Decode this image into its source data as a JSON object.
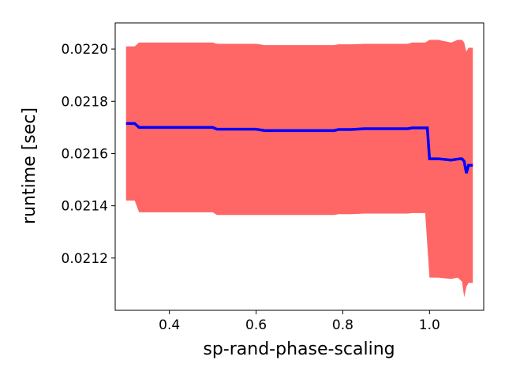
{
  "chart_data": {
    "type": "line",
    "title": "",
    "xlabel": "sp-rand-phase-scaling",
    "ylabel": "runtime [sec]",
    "xlim": [
      0.275,
      1.125
    ],
    "ylim": [
      0.021,
      0.0221
    ],
    "xticks": [
      0.4,
      0.6,
      0.8,
      1.0
    ],
    "xtick_labels": [
      "0.4",
      "0.6",
      "0.8",
      "1.0"
    ],
    "yticks": [
      0.0212,
      0.0214,
      0.0216,
      0.0218,
      0.022
    ],
    "ytick_labels": [
      "0.0212",
      "0.0214",
      "0.0216",
      "0.0218",
      "0.0220"
    ],
    "grid": false,
    "legend": "none",
    "series": [
      {
        "kind": "mean-line",
        "color": "#0000ff",
        "x": [
          0.3,
          0.32,
          0.33,
          0.4,
          0.5,
          0.51,
          0.55,
          0.6,
          0.62,
          0.7,
          0.78,
          0.79,
          0.82,
          0.85,
          0.9,
          0.95,
          0.96,
          0.995,
          1.0,
          1.02,
          1.05,
          1.07,
          1.075,
          1.08,
          1.085,
          1.09,
          1.1
        ],
        "y": [
          0.021715,
          0.021715,
          0.0217,
          0.0217,
          0.0217,
          0.021693,
          0.021693,
          0.021693,
          0.021688,
          0.021688,
          0.021688,
          0.021692,
          0.021692,
          0.021695,
          0.021695,
          0.021695,
          0.021698,
          0.021698,
          0.02158,
          0.02158,
          0.021575,
          0.02158,
          0.02158,
          0.02157,
          0.021525,
          0.021555,
          0.021555
        ]
      },
      {
        "kind": "band",
        "color": "#ff6666",
        "x": [
          0.3,
          0.32,
          0.33,
          0.4,
          0.5,
          0.51,
          0.55,
          0.6,
          0.62,
          0.7,
          0.78,
          0.79,
          0.82,
          0.85,
          0.9,
          0.95,
          0.96,
          0.99,
          1.0,
          1.02,
          1.05,
          1.065,
          1.075,
          1.08,
          1.085,
          1.09,
          1.1
        ],
        "upper": [
          0.02201,
          0.02201,
          0.022025,
          0.022025,
          0.022025,
          0.02202,
          0.02202,
          0.02202,
          0.022015,
          0.022015,
          0.022015,
          0.022018,
          0.022018,
          0.02202,
          0.02202,
          0.02202,
          0.022025,
          0.022025,
          0.022035,
          0.022035,
          0.022025,
          0.022035,
          0.022035,
          0.022025,
          0.02199,
          0.022005,
          0.022005
        ],
        "lower": [
          0.02142,
          0.02142,
          0.021375,
          0.021375,
          0.021375,
          0.021365,
          0.021365,
          0.021365,
          0.021365,
          0.021365,
          0.021365,
          0.021368,
          0.021368,
          0.02137,
          0.02137,
          0.02137,
          0.021372,
          0.021372,
          0.021125,
          0.021125,
          0.02112,
          0.021125,
          0.02111,
          0.02105,
          0.02109,
          0.021105,
          0.021105
        ]
      }
    ]
  }
}
